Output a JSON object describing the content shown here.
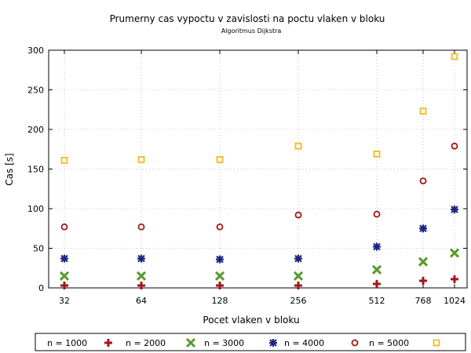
{
  "chart_data": {
    "type": "scatter",
    "title": "Prumerny cas vypoctu v zavislosti na poctu vlaken v bloku",
    "subtitle": "Algoritmus Dijkstra",
    "xlabel": "Pocet vlaken v bloku",
    "ylabel": "Cas [s]",
    "categories": [
      "32",
      "64",
      "128",
      "256",
      "512",
      "768",
      "1024"
    ],
    "ylim": [
      0,
      300
    ],
    "yticks": [
      0,
      50,
      100,
      150,
      200,
      250,
      300
    ],
    "grid": true,
    "legend_position": "bottom",
    "series": [
      {
        "name": "n = 1000",
        "marker": "plus",
        "color": "#a01818",
        "values": [
          3,
          3,
          3,
          3,
          5,
          9,
          11
        ]
      },
      {
        "name": "n = 2000",
        "marker": "cross",
        "color": "#5a9a2a",
        "values": [
          15,
          15,
          15,
          15,
          23,
          33,
          44
        ]
      },
      {
        "name": "n = 3000",
        "marker": "star",
        "color": "#1a237e",
        "values": [
          37,
          37,
          36,
          37,
          52,
          75,
          99
        ]
      },
      {
        "name": "n = 4000",
        "marker": "circle",
        "color": "#a01818",
        "values": [
          77,
          77,
          77,
          92,
          93,
          135,
          179
        ]
      },
      {
        "name": "n = 5000",
        "marker": "square",
        "color": "#f5b820",
        "values": [
          161,
          162,
          162,
          179,
          169,
          223,
          292
        ]
      }
    ]
  }
}
